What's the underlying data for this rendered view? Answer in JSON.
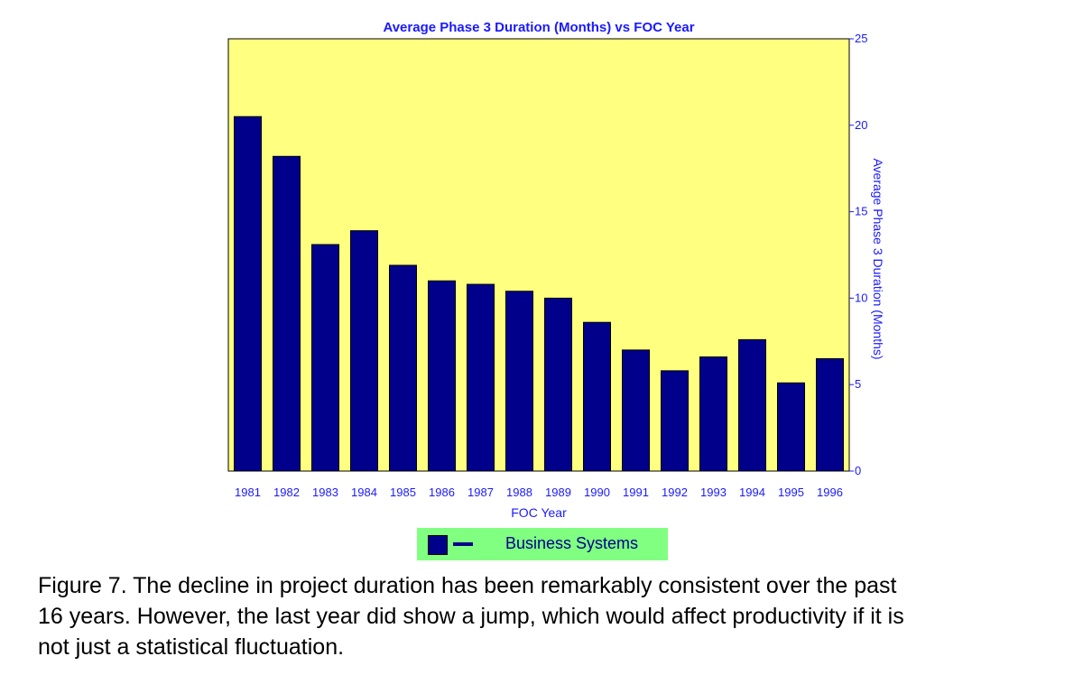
{
  "chart_data": {
    "type": "bar",
    "title": "Average Phase 3 Duration (Months) vs FOC Year",
    "xlabel": "FOC Year",
    "ylabel": "Average Phase 3 Duration (Months)",
    "ylim": [
      0,
      25
    ],
    "yticks": [
      0,
      5,
      10,
      15,
      20,
      25
    ],
    "y_axis_side": "right",
    "grid": false,
    "plot_background": "#ffff80",
    "bar_color": "#00008b",
    "categories": [
      "1981",
      "1982",
      "1983",
      "1984",
      "1985",
      "1986",
      "1987",
      "1988",
      "1989",
      "1990",
      "1991",
      "1992",
      "1993",
      "1994",
      "1995",
      "1996"
    ],
    "series": [
      {
        "name": "Business Systems",
        "values": [
          20.5,
          18.2,
          13.1,
          13.9,
          11.9,
          11.0,
          10.8,
          10.4,
          10.0,
          8.6,
          7.0,
          5.8,
          6.6,
          7.6,
          5.1,
          6.5
        ]
      }
    ],
    "legend_placement": "bottom-center",
    "legend_background": "#80ff80"
  },
  "caption": {
    "line1": "Figure 7. The decline in project duration has been remarkably consistent over the past",
    "line2": "16 years. However, the last year did show a jump, which would affect productivity if it is",
    "line3": "not just a statistical fluctuation."
  }
}
